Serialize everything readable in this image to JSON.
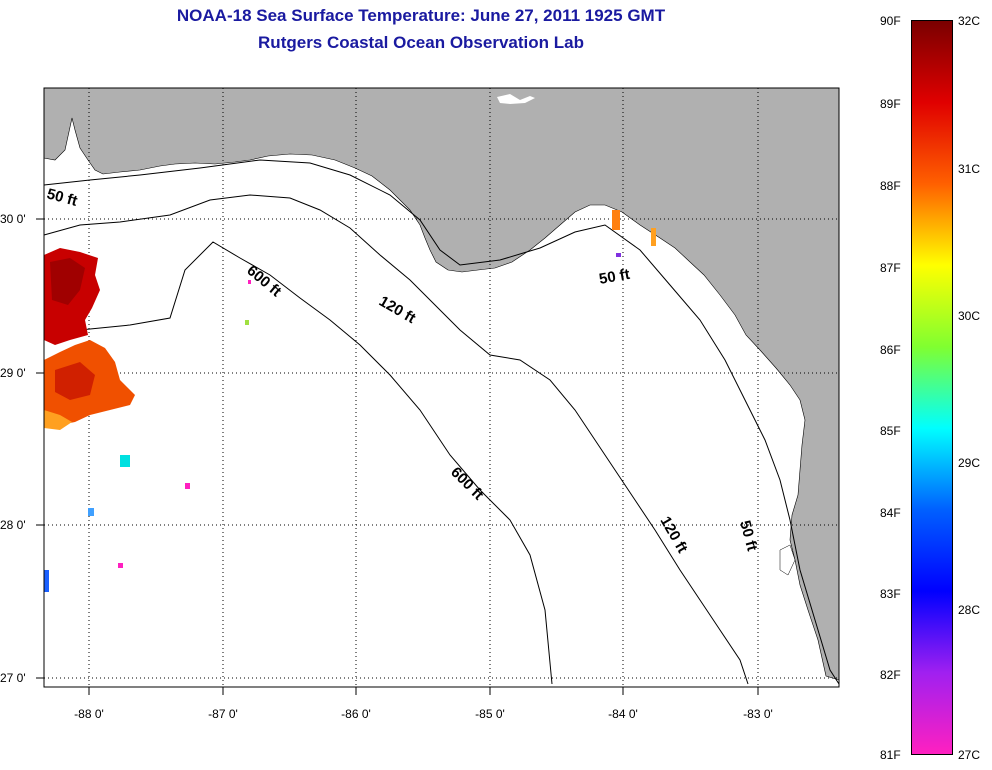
{
  "title": {
    "line1": "NOAA-18 Sea Surface Temperature:  June 27, 2011 1925 GMT",
    "line2": "Rutgers Coastal Ocean Observation Lab"
  },
  "map": {
    "lon_labels": [
      "-88 0'",
      "-87 0'",
      "-86 0'",
      "-85 0'",
      "-84 0'",
      "-83 0'"
    ],
    "lat_labels": [
      "30 0'",
      "29 0'",
      "28 0'",
      "27 0'"
    ],
    "contour_labels": {
      "c50_west": "50 ft",
      "c600_a": "600 ft",
      "c120_a": "120 ft",
      "c50_east": "50 ft",
      "c600_b": "600 ft",
      "c120_b": "120 ft",
      "c50_south": "50 ft"
    },
    "colors": {
      "land": "#b0b0b0",
      "water": "#ffffff",
      "title": "#1a1aa0"
    }
  },
  "colorbar": {
    "f_labels": [
      "90F",
      "89F",
      "88F",
      "87F",
      "86F",
      "85F",
      "84F",
      "83F",
      "82F",
      "81F"
    ],
    "c_labels": [
      "32C",
      "31C",
      "30C",
      "29C",
      "28C",
      "27C"
    ],
    "gradient_stops": [
      "#7a0000",
      "#e00000",
      "#ff6000",
      "#ffff00",
      "#80ff30",
      "#00ffff",
      "#0060ff",
      "#0000ff",
      "#a020f0",
      "#ff20c0"
    ]
  }
}
